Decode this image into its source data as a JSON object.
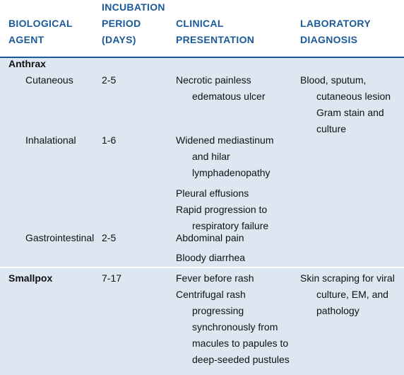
{
  "headers": {
    "agent": [
      "BIOLOGICAL",
      "AGENT"
    ],
    "incubation": [
      "INCUBATION",
      "PERIOD",
      "(DAYS)"
    ],
    "clinical": [
      "CLINICAL",
      "PRESENTATION"
    ],
    "lab": [
      "LABORATORY",
      "DIAGNOSIS"
    ]
  },
  "anthrax": {
    "group": "Anthrax",
    "cutaneous": {
      "name": "Cutaneous",
      "period": "2-5",
      "clinical": [
        "Necrotic painless",
        "edematous ulcer"
      ],
      "lab": [
        "Blood, sputum,",
        "cutaneous lesion",
        "Gram stain and",
        "culture"
      ]
    },
    "inhalational": {
      "name": "Inhalational",
      "period": "1-6",
      "clinical": [
        "Widened mediastinum",
        "and hilar",
        "lymphadenopathy",
        "Pleural effusions",
        "Rapid progression to",
        "respiratory failure"
      ]
    },
    "gastrointestinal": {
      "name": "Gastrointestinal",
      "period": "2-5",
      "clinical": [
        "Abdominal pain",
        "Bloody diarrhea"
      ]
    }
  },
  "smallpox": {
    "group": "Smallpox",
    "period": "7-17",
    "clinical": [
      "Fever before rash",
      "Centrifugal rash",
      "progressing",
      "synchronously from",
      "macules to papules to",
      "deep-seeded pustules"
    ],
    "lab": [
      "Skin scraping for viral",
      "culture, EM, and",
      "pathology"
    ]
  }
}
